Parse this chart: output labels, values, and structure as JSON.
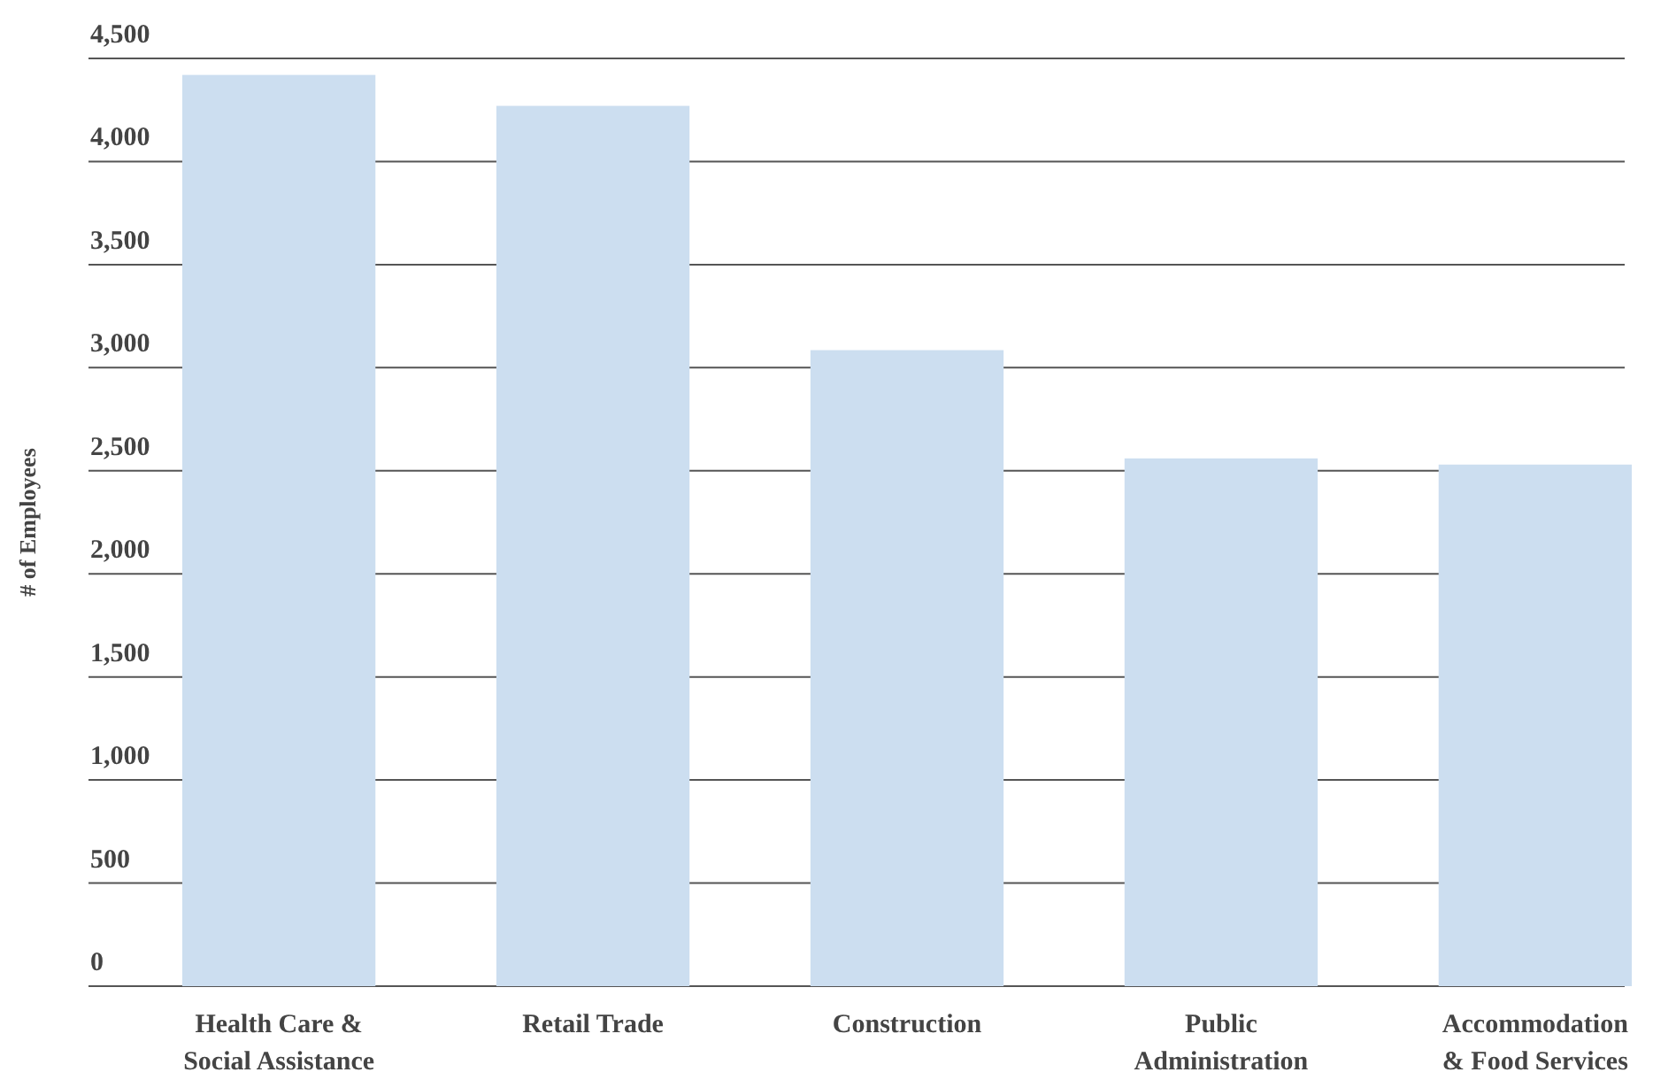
{
  "chart_data": {
    "type": "bar",
    "ylabel": "# of Employees",
    "categories": [
      "Health Care &\nSocial Assistance",
      "Retail Trade",
      "Construction",
      "Public\nAdministration",
      "Accommodation\n& Food Services"
    ],
    "values": [
      4420,
      4270,
      3085,
      2560,
      2530
    ],
    "color": "#ccdef0",
    "ylim": [
      0,
      4500
    ],
    "yticks": [
      {
        "value": 0,
        "label": "0"
      },
      {
        "value": 500,
        "label": "500"
      },
      {
        "value": 1000,
        "label": "1,000"
      },
      {
        "value": 1500,
        "label": "1,500"
      },
      {
        "value": 2000,
        "label": "2,000"
      },
      {
        "value": 2500,
        "label": "2,500"
      },
      {
        "value": 3000,
        "label": "3,000"
      },
      {
        "value": 3500,
        "label": "3,500"
      },
      {
        "value": 4000,
        "label": "4,000"
      },
      {
        "value": 4500,
        "label": "4,500"
      }
    ],
    "grid": "y"
  }
}
